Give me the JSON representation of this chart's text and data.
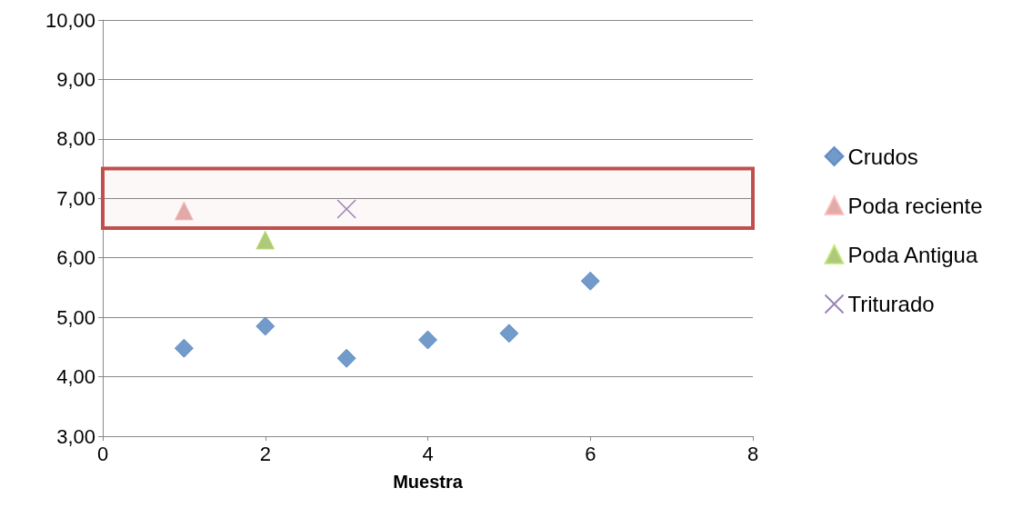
{
  "chart_data": {
    "type": "scatter",
    "xlabel": "Muestra",
    "xlim": [
      0,
      8
    ],
    "xticks": [
      0,
      2,
      4,
      6,
      8
    ],
    "ylim": [
      3,
      10
    ],
    "yticks": [
      {
        "value": 3,
        "label": "3,00"
      },
      {
        "value": 4,
        "label": "4,00"
      },
      {
        "value": 5,
        "label": "5,00"
      },
      {
        "value": 6,
        "label": "6,00"
      },
      {
        "value": 7,
        "label": "7,00"
      },
      {
        "value": 8,
        "label": "8,00"
      },
      {
        "value": 9,
        "label": "9,00"
      },
      {
        "value": 10,
        "label": "10,00"
      }
    ],
    "grid": "y",
    "legend": "right",
    "series": [
      {
        "name": "Crudos",
        "color": "#4f81bd",
        "marker": "diamond",
        "x": [
          1,
          2,
          3,
          4,
          5,
          6
        ],
        "values": [
          4.48,
          4.85,
          4.31,
          4.62,
          4.73,
          5.61
        ]
      },
      {
        "name": "Poda reciente",
        "color": "#d99694",
        "marker": "triangle",
        "x": [
          1
        ],
        "values": [
          6.79
        ]
      },
      {
        "name": "Poda Antigua",
        "color": "#9bbb59",
        "marker": "triangle",
        "x": [
          2
        ],
        "values": [
          6.3
        ]
      },
      {
        "name": "Triturado",
        "color": "#8064a2",
        "marker": "cross",
        "x": [
          3
        ],
        "values": [
          6.82
        ]
      }
    ],
    "bands": [
      {
        "axis": "y",
        "from": 6.5,
        "to": 7.5,
        "color": "#c0504d"
      }
    ]
  }
}
